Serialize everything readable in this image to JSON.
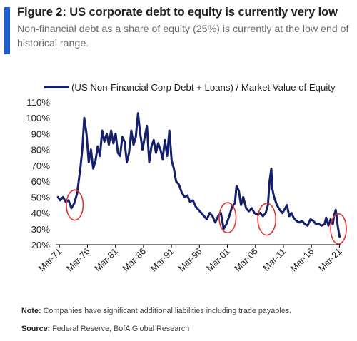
{
  "header": {
    "title": "Figure 2: US corporate debt to equity is currently very low",
    "subtitle": "Non-financial debt as a share of equity (25%) is currently at the low end of historical range.",
    "accent_color": "#1f5fcf"
  },
  "chart_data": {
    "type": "line",
    "title": "",
    "xlabel": "",
    "ylabel": "",
    "ylim": [
      20,
      110
    ],
    "xlim": [
      1970.5,
      2021.5
    ],
    "grid": false,
    "legend_position": "top",
    "y_ticks": [
      "110%",
      "100%",
      "90%",
      "80%",
      "70%",
      "60%",
      "50%",
      "40%",
      "30%",
      "20%"
    ],
    "y_tick_values": [
      110,
      100,
      90,
      80,
      70,
      60,
      50,
      40,
      30,
      20
    ],
    "x_ticks": [
      "Mar-71",
      "Mar-76",
      "Mar-81",
      "Mar-86",
      "Mar-91",
      "Mar-96",
      "Mar-01",
      "Mar-06",
      "Mar-11",
      "Mar-16",
      "Mar-21"
    ],
    "x_tick_values": [
      1971.17,
      1976.17,
      1981.17,
      1986.17,
      1991.17,
      1996.17,
      2001.17,
      2006.17,
      2011.17,
      2016.17,
      2021.17
    ],
    "series": [
      {
        "name": "(US Non-Financial Corp Debt + Loans) / Market Value of Equity",
        "color": "#14206b",
        "x": [
          1970.9,
          1971.3,
          1971.8,
          1972.3,
          1972.8,
          1973.3,
          1973.8,
          1974.3,
          1974.6,
          1974.9,
          1975.3,
          1975.6,
          1976.0,
          1976.4,
          1976.8,
          1977.2,
          1977.6,
          1978.0,
          1978.4,
          1978.8,
          1979.2,
          1979.6,
          1980.0,
          1980.4,
          1980.8,
          1981.2,
          1981.6,
          1982.0,
          1982.4,
          1982.8,
          1983.2,
          1983.6,
          1984.0,
          1984.4,
          1984.8,
          1985.2,
          1985.6,
          1986.0,
          1986.4,
          1986.8,
          1987.2,
          1987.6,
          1988.0,
          1988.4,
          1988.8,
          1989.2,
          1989.6,
          1990.0,
          1990.4,
          1990.8,
          1991.2,
          1991.6,
          1992.0,
          1992.5,
          1993.0,
          1993.5,
          1994.0,
          1994.5,
          1995.0,
          1995.5,
          1996.0,
          1996.5,
          1997.0,
          1997.5,
          1998.0,
          1998.5,
          1999.0,
          1999.5,
          2000.0,
          2000.5,
          2001.0,
          2001.5,
          2002.0,
          2002.5,
          2002.8,
          2003.2,
          2003.6,
          2004.0,
          2004.5,
          2005.0,
          2005.5,
          2006.0,
          2006.5,
          2007.0,
          2007.5,
          2008.0,
          2008.4,
          2008.7,
          2009.0,
          2009.2,
          2009.5,
          2010.0,
          2010.5,
          2011.0,
          2011.5,
          2011.8,
          2012.2,
          2012.6,
          2013.0,
          2013.5,
          2014.0,
          2014.5,
          2015.0,
          2015.5,
          2016.0,
          2016.5,
          2017.0,
          2017.5,
          2018.0,
          2018.5,
          2018.8,
          2019.2,
          2019.6,
          2020.0,
          2020.2,
          2020.5,
          2020.9,
          2021.2
        ],
        "values": [
          50,
          48,
          50,
          47,
          48,
          43,
          46,
          52,
          60,
          68,
          82,
          100,
          90,
          72,
          80,
          68,
          73,
          82,
          76,
          92,
          85,
          90,
          83,
          92,
          84,
          90,
          78,
          76,
          88,
          85,
          72,
          78,
          92,
          83,
          88,
          103,
          90,
          80,
          88,
          95,
          72,
          82,
          86,
          78,
          84,
          80,
          74,
          86,
          76,
          92,
          73,
          68,
          60,
          58,
          53,
          50,
          51,
          47,
          48,
          44,
          42,
          40,
          38,
          36,
          40,
          38,
          34,
          38,
          40,
          30,
          33,
          38,
          44,
          46,
          57,
          54,
          45,
          50,
          43,
          41,
          43,
          40,
          39,
          40,
          38,
          40,
          45,
          60,
          68,
          55,
          50,
          45,
          42,
          40,
          43,
          45,
          38,
          40,
          37,
          35,
          34,
          35,
          33,
          32,
          36,
          35,
          33,
          33,
          32,
          33,
          37,
          32,
          36,
          33,
          38,
          42,
          31,
          25
        ]
      }
    ],
    "annotations": [
      {
        "type": "circle",
        "x": 1973.9,
        "y": 45,
        "rx_years": 1.5,
        "ry_pct": 9.5,
        "color": "#e03030"
      },
      {
        "type": "circle",
        "x": 2001.2,
        "y": 37,
        "rx_years": 1.5,
        "ry_pct": 9.5,
        "color": "#e03030"
      },
      {
        "type": "circle",
        "x": 2008.2,
        "y": 36,
        "rx_years": 1.6,
        "ry_pct": 10,
        "color": "#e03030"
      },
      {
        "type": "circle",
        "x": 2021.0,
        "y": 30,
        "rx_years": 1.4,
        "ry_pct": 9.5,
        "color": "#e03030"
      }
    ]
  },
  "footer": {
    "note_lead": "Note:",
    "note_text": " Companies have significant additional liabilities including trade payables.",
    "source_lead": "Source:",
    "source_text": " Federal Reserve, BofA Global Research"
  }
}
